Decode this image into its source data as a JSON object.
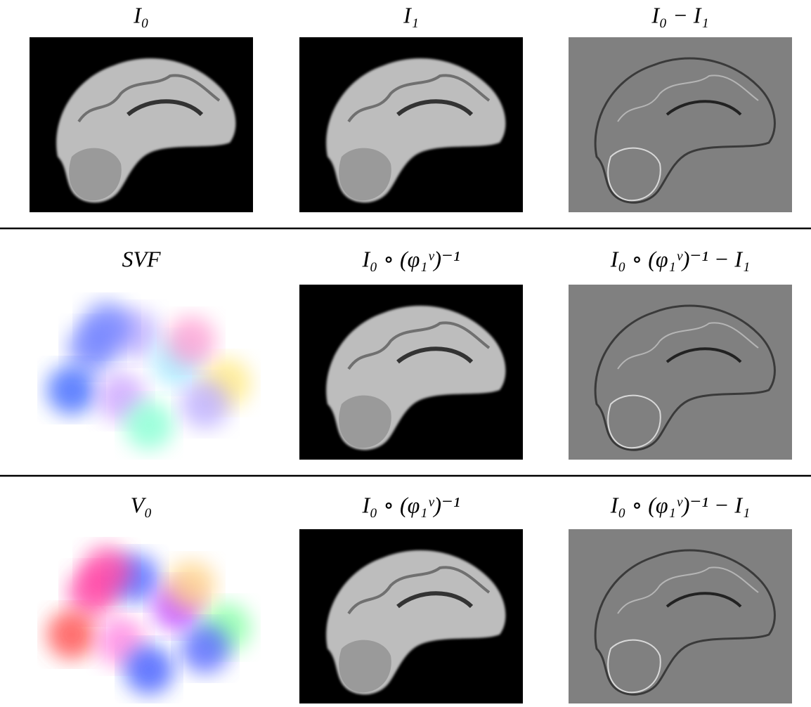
{
  "rows": [
    {
      "labels": [
        "I₀",
        "I₁",
        "I₀ − I₁"
      ]
    },
    {
      "labels": [
        "SVF",
        "I₀ ∘ (φ₁ᵛ)⁻¹",
        "I₀ ∘ (φ₁ᵛ)⁻¹ − I₁"
      ]
    },
    {
      "labels": [
        "V₀",
        "I₀ ∘ (φ₁ᵛ)⁻¹",
        "I₀ ∘ (φ₁ᵛ)⁻¹ − I₁"
      ]
    }
  ]
}
